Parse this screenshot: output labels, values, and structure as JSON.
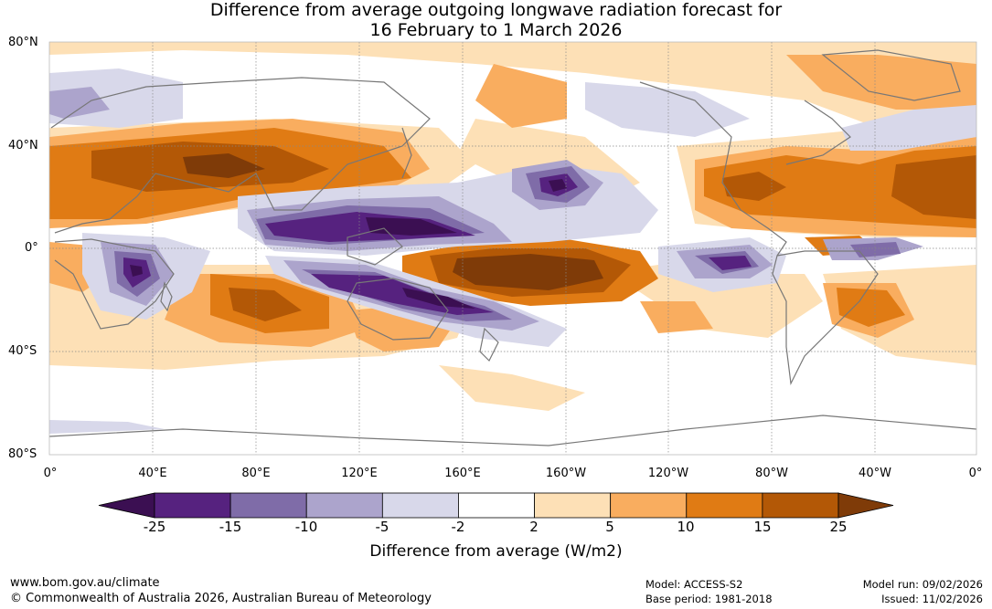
{
  "title": {
    "line1": "Difference from average outgoing longwave radiation forecast for",
    "line2": "16 February to 1 March 2026"
  },
  "latitude_labels": [
    "80°N",
    "40°N",
    "0°",
    "40°S",
    "80°S"
  ],
  "longitude_labels": [
    "0°",
    "40°E",
    "80°E",
    "120°E",
    "160°E",
    "160°W",
    "120°W",
    "80°W",
    "40°W",
    "0°"
  ],
  "colorbar": {
    "ticks": [
      "-25",
      "-15",
      "-10",
      "-5",
      "-2",
      "2",
      "5",
      "10",
      "15",
      "25"
    ],
    "colors": [
      "#3b0f52",
      "#56227f",
      "#7f6ca8",
      "#aca4cc",
      "#d8d8ea",
      "#ffffff",
      "#fde0b6",
      "#f9ad5f",
      "#e07b14",
      "#b35806",
      "#7f3b08"
    ],
    "label": "Difference from average (W/m2)"
  },
  "footer": {
    "website": "www.bom.gov.au/climate",
    "copyright": "© Commonwealth of Australia 2026, Australian Bureau of Meteorology",
    "model": "Model: ACCESS-S2",
    "base_period": "Base period: 1981-2018",
    "model_run": "Model run: 09/02/2026",
    "issued": "Issued: 11/02/2026"
  }
}
